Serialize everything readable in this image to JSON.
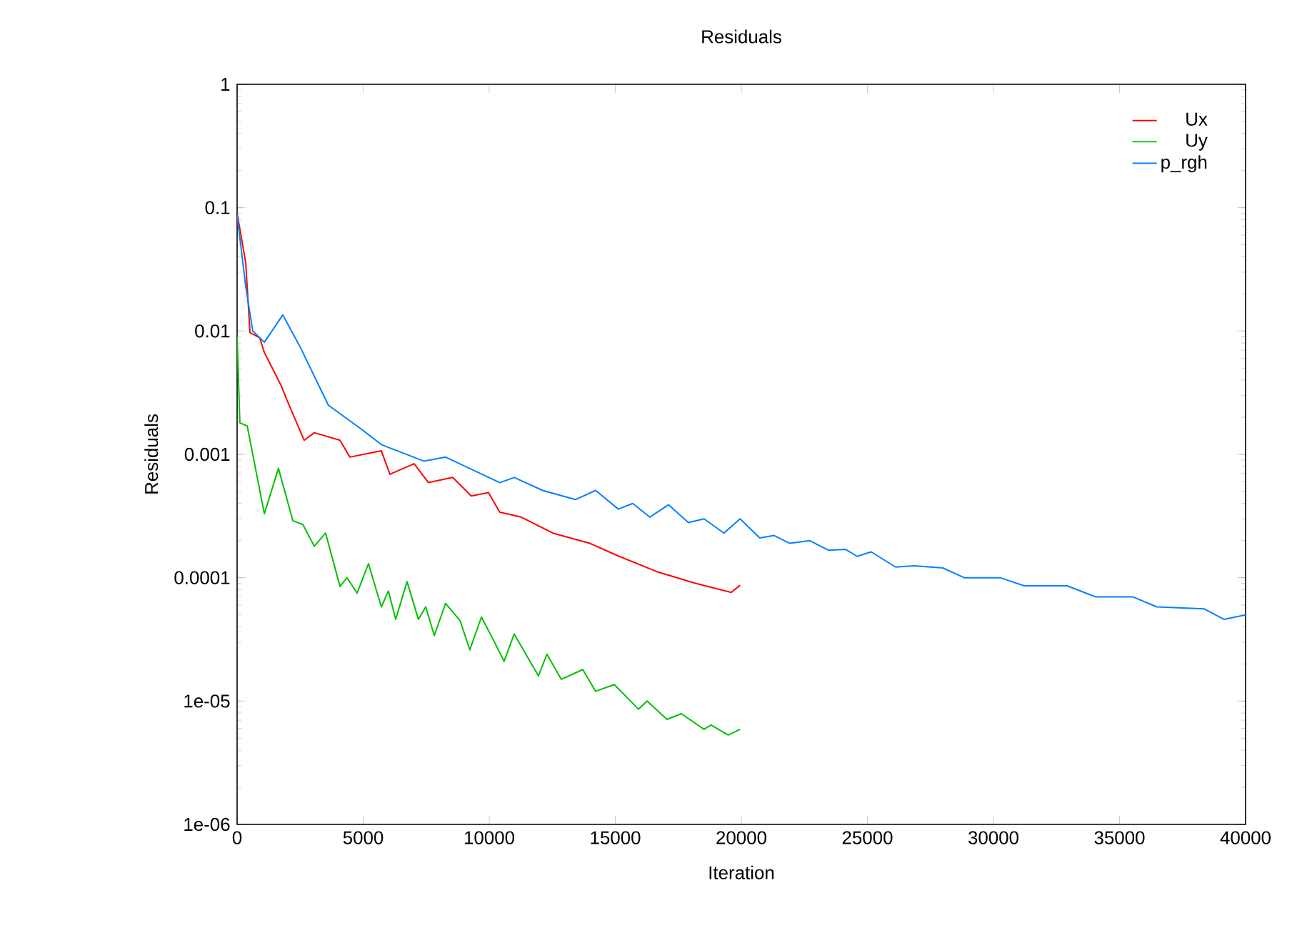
{
  "chart_data": {
    "type": "line",
    "title": "Residuals",
    "xlabel": "Iteration",
    "ylabel": "Residuals",
    "log": "y",
    "grid": false,
    "legend": "top right",
    "marker": "none",
    "line_style": "solid",
    "xlim": [
      0,
      40000
    ],
    "xticks": [
      0,
      5000,
      10000,
      15000,
      20000,
      25000,
      30000,
      35000,
      40000
    ],
    "ylim": [
      1e-06,
      1
    ],
    "yticks": [
      {
        "value": 1e-06,
        "label": "1e-06"
      },
      {
        "value": 1e-05,
        "label": "1e-05"
      },
      {
        "value": 0.0001,
        "label": "0.0001"
      },
      {
        "value": 0.001,
        "label": "0.001"
      },
      {
        "value": 0.01,
        "label": "0.01"
      },
      {
        "value": 0.1,
        "label": "0.1"
      },
      {
        "value": 1,
        "label": "1"
      }
    ],
    "series": [
      {
        "name": "Ux",
        "color": "#ff0000",
        "x": [
          0,
          340,
          510,
          900,
          1080,
          1750,
          1930,
          2660,
          3060,
          4080,
          4470,
          5720,
          6060,
          7020,
          7590,
          8550,
          9290,
          9970,
          10420,
          11270,
          12520,
          13990,
          15120,
          16650,
          18180,
          19600,
          19950
        ],
        "values": [
          0.09,
          0.036,
          0.0097,
          0.0088,
          0.0067,
          0.0036,
          0.0029,
          0.0013,
          0.0015,
          0.0013,
          0.00095,
          0.00107,
          0.00069,
          0.00084,
          0.00059,
          0.00065,
          0.00046,
          0.00049,
          0.00034,
          0.00031,
          0.00023,
          0.00019,
          0.00015,
          0.000112,
          9e-05,
          7.6e-05,
          8.7e-05
        ]
      },
      {
        "name": "Uy",
        "color": "#00c000",
        "x": [
          0,
          110,
          400,
          1080,
          1640,
          2210,
          2610,
          3060,
          3510,
          4080,
          4360,
          4760,
          5210,
          5720,
          6000,
          6290,
          6740,
          7190,
          7480,
          7820,
          8270,
          8840,
          9230,
          9690,
          10140,
          10590,
          10990,
          11950,
          12290,
          12860,
          13710,
          14220,
          14960,
          15920,
          16260,
          17050,
          17620,
          18520,
          18800,
          19480,
          19950
        ],
        "values": [
          0.009,
          0.0018,
          0.0017,
          0.00033,
          0.00077,
          0.00029,
          0.00027,
          0.00018,
          0.00023,
          8.5e-05,
          0.0001,
          7.5e-05,
          0.00013,
          5.8e-05,
          7.8e-05,
          4.6e-05,
          9.3e-05,
          4.6e-05,
          5.8e-05,
          3.4e-05,
          6.2e-05,
          4.5e-05,
          2.6e-05,
          4.8e-05,
          3.2e-05,
          2.1e-05,
          3.5e-05,
          1.6e-05,
          2.4e-05,
          1.5e-05,
          1.8e-05,
          1.2e-05,
          1.36e-05,
          8.6e-06,
          1e-05,
          7.1e-06,
          7.9e-06,
          5.9e-06,
          6.4e-06,
          5.3e-06,
          5.9e-06
        ]
      },
      {
        "name": "p_rgh",
        "color": "#0080ff",
        "x": [
          0,
          340,
          620,
          1080,
          1810,
          2490,
          3620,
          4930,
          5720,
          7420,
          8270,
          10420,
          10990,
          12120,
          13420,
          14220,
          15120,
          15690,
          16370,
          17110,
          17900,
          18520,
          19310,
          19950,
          20730,
          21300,
          21920,
          22710,
          23450,
          24130,
          24590,
          25150,
          26120,
          26850,
          27990,
          28840,
          30260,
          31220,
          32920,
          34050,
          35520,
          36480,
          38350,
          39140,
          40000
        ],
        "values": [
          0.087,
          0.023,
          0.01,
          0.0081,
          0.0135,
          0.0075,
          0.0025,
          0.0016,
          0.0012,
          0.00088,
          0.00095,
          0.00059,
          0.00065,
          0.00051,
          0.00043,
          0.00051,
          0.00036,
          0.0004,
          0.00031,
          0.00039,
          0.00028,
          0.0003,
          0.00023,
          0.0003,
          0.00021,
          0.00022,
          0.00019,
          0.0002,
          0.000167,
          0.00017,
          0.000149,
          0.000162,
          0.000122,
          0.000125,
          0.00012,
          0.0001,
          0.0001,
          8.6e-05,
          8.6e-05,
          7e-05,
          7e-05,
          5.8e-05,
          5.6e-05,
          4.6e-05,
          5e-05
        ]
      }
    ]
  }
}
